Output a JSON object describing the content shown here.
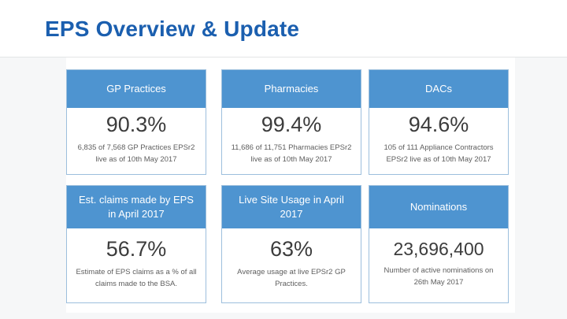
{
  "slide": {
    "title": "EPS Overview & Update"
  },
  "colors": {
    "title_blue": "#1b5faf",
    "header_blue": "#4e94d0",
    "card_border_blue": "#9dbfdd",
    "page_background_gray": "#f6f7f8",
    "value_dark_gray": "#3c3c3c",
    "note_gray": "#5e5e5e"
  },
  "cards": [
    {
      "header": "GP Practices",
      "value": "90.3%",
      "note": "6,835 of 7,568 GP Practices EPSr2 live as of 10th May 2017"
    },
    {
      "header": "Pharmacies",
      "value": "99.4%",
      "note": "11,686 of 11,751 Pharmacies EPSr2 live as of 10th May 2017"
    },
    {
      "header": "DACs",
      "value": "94.6%",
      "note": "105 of 111 Appliance Contractors EPSr2 live as of 10th May 2017"
    },
    {
      "header": "Est. claims made by EPS in April 2017",
      "value": "56.7%",
      "note": "Estimate of EPS claims as a % of all claims made to the BSA."
    },
    {
      "header": "Live Site Usage in April 2017",
      "value": "63%",
      "note": "Average usage at live EPSr2 GP Practices."
    },
    {
      "header": "Nominations",
      "value": "23,696,400",
      "note": "Number of active nominations on 26th May 2017"
    }
  ]
}
